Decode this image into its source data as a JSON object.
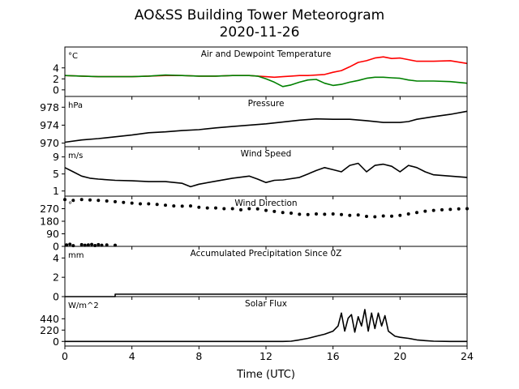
{
  "figure": {
    "title_line1": "AO&SS Building Tower Meteorogram",
    "title_line2": "2020-11-26",
    "xlabel": "Time (UTC)"
  },
  "chart_data": [
    {
      "type": "line",
      "title": "Air and Dewpoint Temperature",
      "unit": "°C",
      "ylim": [
        -1.2,
        7.8
      ],
      "yticks": [
        0,
        2,
        4
      ],
      "xlim": [
        0,
        24
      ],
      "series": [
        {
          "color": "#ff0000",
          "x": [
            0,
            1,
            2,
            3,
            4,
            5,
            6,
            7,
            8,
            9,
            10,
            11,
            11.5,
            12,
            12.5,
            13,
            13.5,
            14,
            14.5,
            15,
            15.5,
            16,
            16.5,
            17,
            17.5,
            18,
            18.5,
            19,
            19.5,
            20,
            20.5,
            21,
            22,
            23,
            24
          ],
          "y": [
            2.6,
            2.5,
            2.4,
            2.4,
            2.4,
            2.5,
            2.6,
            2.6,
            2.5,
            2.5,
            2.6,
            2.6,
            2.5,
            2.4,
            2.3,
            2.4,
            2.5,
            2.6,
            2.6,
            2.7,
            2.8,
            3.2,
            3.5,
            4.2,
            5.0,
            5.3,
            5.8,
            6.0,
            5.7,
            5.8,
            5.5,
            5.2,
            5.2,
            5.3,
            4.8
          ]
        },
        {
          "color": "#008000",
          "x": [
            0,
            1,
            2,
            3,
            4,
            5,
            6,
            7,
            8,
            9,
            10,
            11,
            11.5,
            12,
            12.5,
            13,
            13.5,
            14,
            14.5,
            15,
            15.5,
            16,
            16.5,
            17,
            17.5,
            18,
            18.5,
            19,
            19.5,
            20,
            20.5,
            21,
            22,
            23,
            24
          ],
          "y": [
            2.6,
            2.5,
            2.4,
            2.4,
            2.4,
            2.5,
            2.7,
            2.6,
            2.5,
            2.5,
            2.6,
            2.6,
            2.5,
            2.0,
            1.4,
            0.6,
            0.9,
            1.4,
            1.8,
            1.9,
            1.2,
            0.8,
            1.0,
            1.4,
            1.7,
            2.1,
            2.3,
            2.3,
            2.2,
            2.1,
            1.8,
            1.6,
            1.6,
            1.5,
            1.2
          ]
        }
      ]
    },
    {
      "type": "line",
      "title": "Pressure",
      "unit": "hPa",
      "ylim": [
        969.2,
        980.4
      ],
      "yticks": [
        970,
        974,
        978
      ],
      "xlim": [
        0,
        24
      ],
      "series": [
        {
          "color": "#000000",
          "x": [
            0,
            1,
            2,
            3,
            4,
            5,
            6,
            7,
            8,
            9,
            10,
            11,
            12,
            13,
            14,
            15,
            16,
            17,
            18,
            19,
            20,
            20.5,
            21,
            22,
            23,
            24
          ],
          "y": [
            970.2,
            970.7,
            971.0,
            971.4,
            971.8,
            972.3,
            972.5,
            972.8,
            973.0,
            973.4,
            973.7,
            974.0,
            974.3,
            974.7,
            975.1,
            975.4,
            975.3,
            975.3,
            975.0,
            974.6,
            974.6,
            974.8,
            975.3,
            975.9,
            976.4,
            977.1
          ]
        }
      ]
    },
    {
      "type": "line",
      "title": "Wind Speed",
      "unit": "m/s",
      "ylim": [
        -0.2,
        11.4
      ],
      "yticks": [
        1,
        5,
        9
      ],
      "xlim": [
        0,
        24
      ],
      "series": [
        {
          "color": "#000000",
          "x": [
            0,
            0.5,
            1,
            1.5,
            2,
            3,
            4,
            5,
            6,
            7,
            7.5,
            8,
            9,
            10,
            11,
            11.5,
            12,
            12.5,
            13,
            14,
            14.5,
            15,
            15.5,
            16,
            16.5,
            17,
            17.5,
            18,
            18.5,
            19,
            19.5,
            20,
            20.5,
            21,
            21.5,
            22,
            23,
            24
          ],
          "y": [
            6.5,
            5.5,
            4.5,
            4.0,
            3.8,
            3.5,
            3.4,
            3.2,
            3.2,
            2.8,
            2.0,
            2.6,
            3.3,
            4.0,
            4.5,
            3.8,
            3.0,
            3.5,
            3.6,
            4.2,
            5.0,
            5.8,
            6.5,
            6.0,
            5.5,
            7.0,
            7.5,
            5.5,
            7.0,
            7.3,
            6.8,
            5.5,
            7.0,
            6.5,
            5.5,
            4.8,
            4.5,
            4.2
          ]
        }
      ]
    },
    {
      "type": "scatter",
      "title": "Wind Direction",
      "unit": "°",
      "ylim": [
        0,
        360
      ],
      "yticks": [
        0,
        90,
        180,
        270
      ],
      "xlim": [
        0,
        24
      ],
      "series": [
        {
          "color": "#000000",
          "x": [
            0,
            0.5,
            1,
            1.5,
            2,
            2.5,
            3,
            3.5,
            4,
            4.5,
            5,
            5.5,
            6,
            6.5,
            7,
            7.5,
            8,
            8.5,
            9,
            9.5,
            10,
            10.5,
            11,
            11.5,
            12,
            12.5,
            13,
            13.5,
            14,
            14.5,
            15,
            15.5,
            16,
            16.5,
            17,
            17.5,
            18,
            18.5,
            19,
            19.5,
            20,
            20.5,
            21,
            21.5,
            22,
            22.5,
            23,
            23.5,
            24
          ],
          "y": [
            335,
            330,
            335,
            332,
            330,
            325,
            320,
            315,
            310,
            305,
            305,
            300,
            295,
            290,
            288,
            290,
            280,
            275,
            275,
            270,
            270,
            262,
            270,
            268,
            258,
            250,
            242,
            238,
            230,
            228,
            232,
            230,
            232,
            228,
            222,
            225,
            215,
            212,
            218,
            216,
            222,
            232,
            242,
            252,
            258,
            262,
            265,
            268,
            270
          ]
        },
        {
          "color": "#000000",
          "x": [
            0.1,
            0.3,
            0.5,
            1.0,
            1.2,
            1.4,
            1.6,
            1.8,
            2.0,
            2.2,
            2.5,
            3.0
          ],
          "y": [
            10,
            15,
            5,
            12,
            8,
            10,
            14,
            6,
            12,
            8,
            10,
            8
          ]
        }
      ]
    },
    {
      "type": "line",
      "title": "Accumulated Precipitation Since 0Z",
      "unit": "mm",
      "ylim": [
        0,
        5.2
      ],
      "yticks": [
        0,
        2,
        4
      ],
      "xlim": [
        0,
        24
      ],
      "series": [
        {
          "color": "#000000",
          "x": [
            0,
            3,
            3,
            24
          ],
          "y": [
            0,
            0,
            0.25,
            0.25
          ]
        }
      ]
    },
    {
      "type": "line",
      "title": "Solar Flux",
      "unit": "W/m^2",
      "ylim": [
        -90,
        870
      ],
      "yticks": [
        0,
        220,
        440
      ],
      "xlim": [
        0,
        24
      ],
      "xticks": [
        0,
        4,
        8,
        12,
        16,
        20,
        24
      ],
      "series": [
        {
          "color": "#000000",
          "x": [
            0,
            13,
            13.5,
            14,
            14.5,
            15,
            15.5,
            16,
            16.3,
            16.5,
            16.7,
            16.9,
            17.1,
            17.3,
            17.5,
            17.7,
            17.9,
            18.1,
            18.3,
            18.5,
            18.7,
            18.9,
            19.1,
            19.3,
            19.5,
            19.7,
            20,
            20.5,
            21,
            21.5,
            22,
            23,
            24
          ],
          "y": [
            0,
            0,
            5,
            30,
            60,
            100,
            140,
            200,
            300,
            550,
            200,
            450,
            520,
            180,
            480,
            300,
            620,
            200,
            550,
            250,
            550,
            300,
            500,
            200,
            150,
            100,
            80,
            60,
            30,
            15,
            5,
            0,
            0
          ]
        }
      ]
    }
  ]
}
